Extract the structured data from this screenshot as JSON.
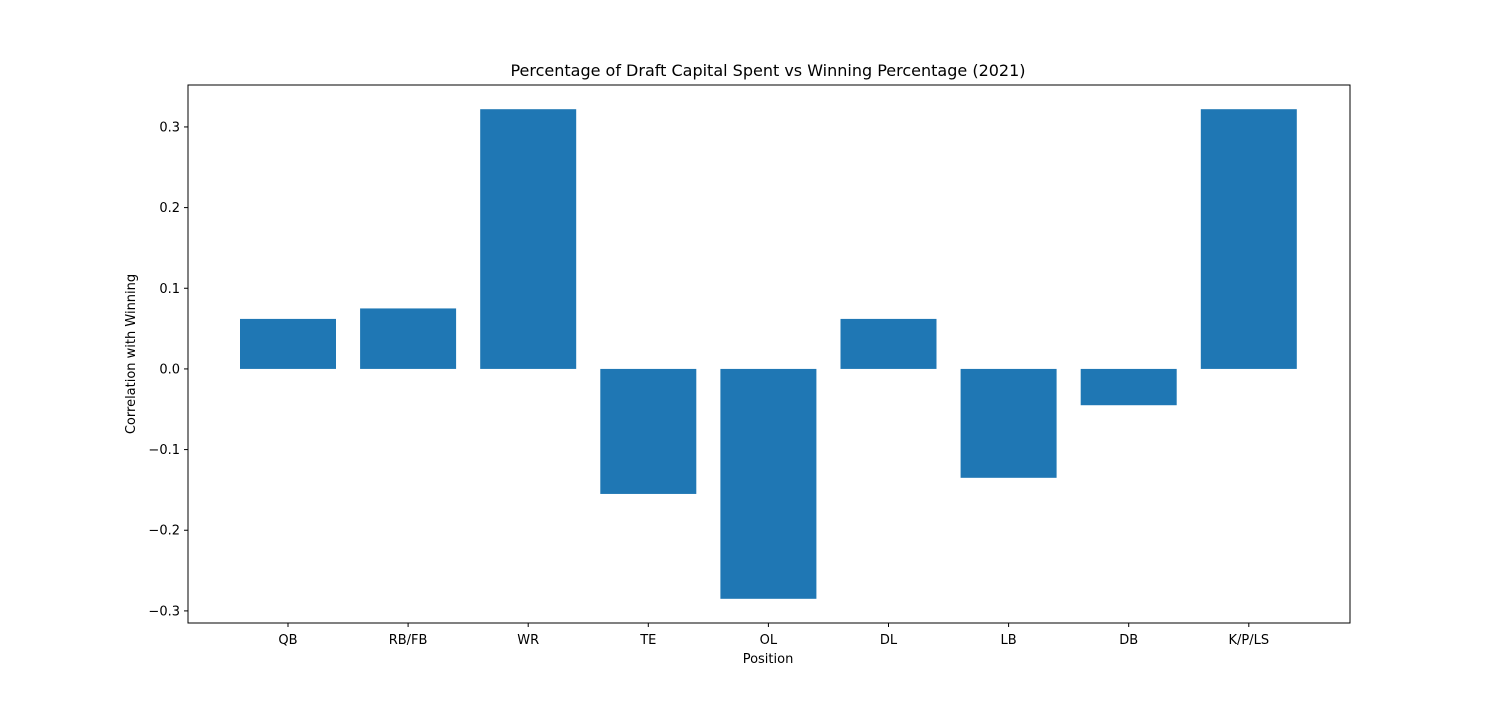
{
  "chart_data": {
    "type": "bar",
    "title": "Percentage of Draft Capital Spent vs Winning Percentage (2021)",
    "xlabel": "Position",
    "ylabel": "Correlation with Winning",
    "categories": [
      "QB",
      "RB/FB",
      "WR",
      "TE",
      "OL",
      "DL",
      "LB",
      "DB",
      "K/P/LS"
    ],
    "values": [
      0.062,
      0.075,
      0.322,
      -0.155,
      -0.285,
      0.062,
      -0.135,
      -0.045,
      0.322
    ],
    "ylim": [
      -0.315,
      0.352
    ],
    "yticks": [
      -0.3,
      -0.2,
      -0.1,
      0.0,
      0.1,
      0.2,
      0.3
    ],
    "ytick_labels": [
      "−0.3",
      "−0.2",
      "−0.1",
      "0.0",
      "0.1",
      "0.2",
      "0.3"
    ],
    "bar_color": "#1f77b4",
    "grid": false,
    "legend": "none"
  }
}
